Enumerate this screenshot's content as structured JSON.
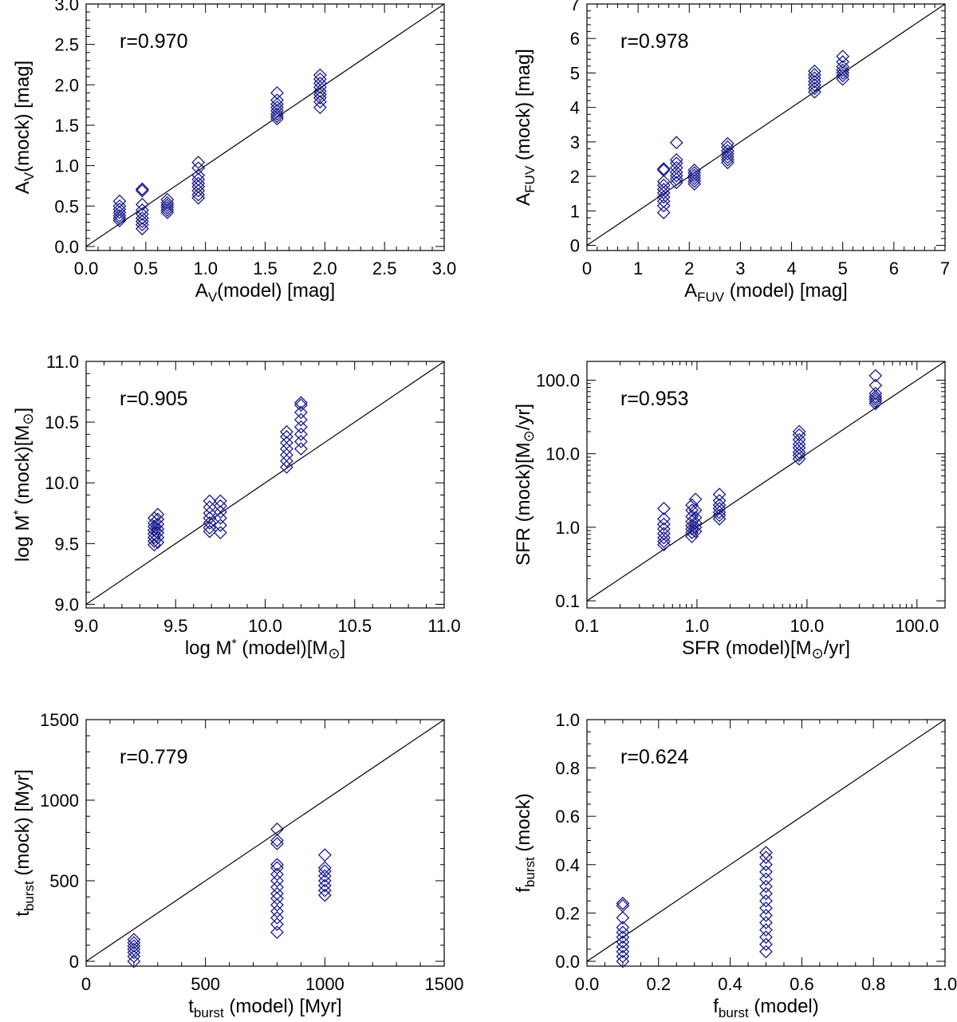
{
  "chart_data": [
    {
      "type": "scatter",
      "title": "",
      "annotation": "r=0.970",
      "xlabel": {
        "base": "A",
        "sub": "V",
        "rest": "(model) [mag]"
      },
      "ylabel": {
        "base": "A",
        "sub": "V",
        "rest": "(mock) [mag]"
      },
      "xlim": [
        0.0,
        3.0
      ],
      "ylim": [
        -0.05,
        3.0
      ],
      "scale": "linear",
      "xticks": [
        0.0,
        0.5,
        1.0,
        1.5,
        2.0,
        2.5,
        3.0
      ],
      "xtick_labels": [
        "0.0",
        "0.5",
        "1.0",
        "1.5",
        "2.0",
        "2.5",
        "3.0"
      ],
      "yticks": [
        0.0,
        0.5,
        1.0,
        1.5,
        2.0,
        2.5,
        3.0
      ],
      "ytick_labels": [
        "0.0",
        "0.5",
        "1.0",
        "1.5",
        "2.0",
        "2.5",
        "3.0"
      ],
      "minor_step": 0.1,
      "identity_line": true,
      "groups": [
        {
          "x": 0.28,
          "y": [
            0.32,
            0.35,
            0.38,
            0.42,
            0.46,
            0.5,
            0.56
          ]
        },
        {
          "x": 0.47,
          "y": [
            0.22,
            0.27,
            0.31,
            0.35,
            0.4,
            0.45,
            0.52,
            0.69,
            0.71
          ]
        },
        {
          "x": 0.68,
          "y": [
            0.42,
            0.45,
            0.48,
            0.51,
            0.54,
            0.58
          ]
        },
        {
          "x": 0.94,
          "y": [
            0.6,
            0.64,
            0.69,
            0.74,
            0.78,
            0.83,
            0.88,
            0.97,
            1.04
          ]
        },
        {
          "x": 1.6,
          "y": [
            1.58,
            1.61,
            1.64,
            1.68,
            1.72,
            1.76,
            1.81,
            1.9
          ]
        },
        {
          "x": 1.96,
          "y": [
            1.72,
            1.79,
            1.84,
            1.88,
            1.92,
            1.97,
            2.02,
            2.07,
            2.12
          ]
        }
      ]
    },
    {
      "type": "scatter",
      "title": "",
      "annotation": "r=0.978",
      "xlabel": {
        "base": "A",
        "sub": "FUV",
        "rest": " (model) [mag]"
      },
      "ylabel": {
        "base": "A",
        "sub": "FUV",
        "rest": " (mock) [mag]"
      },
      "xlim": [
        0,
        7
      ],
      "ylim": [
        -0.15,
        7
      ],
      "scale": "linear",
      "xticks": [
        0,
        1,
        2,
        3,
        4,
        5,
        6,
        7
      ],
      "xtick_labels": [
        "0",
        "1",
        "2",
        "3",
        "4",
        "5",
        "6",
        "7"
      ],
      "yticks": [
        0,
        1,
        2,
        3,
        4,
        5,
        6,
        7
      ],
      "ytick_labels": [
        "0",
        "1",
        "2",
        "3",
        "4",
        "5",
        "6",
        "7"
      ],
      "minor_step": 0.2,
      "identity_line": true,
      "groups": [
        {
          "x": 1.5,
          "y": [
            0.95,
            1.15,
            1.28,
            1.4,
            1.52,
            1.62,
            1.74,
            1.85,
            2.18,
            2.22
          ]
        },
        {
          "x": 1.75,
          "y": [
            1.82,
            1.92,
            2.02,
            2.12,
            2.25,
            2.38,
            2.48,
            2.98
          ]
        },
        {
          "x": 2.1,
          "y": [
            1.78,
            1.86,
            1.94,
            2.02,
            2.1,
            2.18
          ]
        },
        {
          "x": 2.75,
          "y": [
            2.4,
            2.48,
            2.56,
            2.65,
            2.74,
            2.85,
            2.95
          ]
        },
        {
          "x": 4.45,
          "y": [
            4.45,
            4.55,
            4.65,
            4.75,
            4.85,
            4.95,
            5.05
          ]
        },
        {
          "x": 5.0,
          "y": [
            4.82,
            4.92,
            5.0,
            5.08,
            5.18,
            5.32,
            5.48
          ]
        }
      ]
    },
    {
      "type": "scatter",
      "title": "",
      "annotation": "r=0.905",
      "xlabel": {
        "base": "log M",
        "sub": "",
        "star": "*",
        "rest": " (model)[M",
        "sun": true,
        "after": "]"
      },
      "ylabel": {
        "base": "log M",
        "sub": "",
        "star": "*",
        "rest": " (mock)[M",
        "sun": true,
        "after": "]"
      },
      "xlim": [
        9.0,
        11.0
      ],
      "ylim": [
        8.97,
        11.0
      ],
      "scale": "linear",
      "xticks": [
        9.0,
        9.5,
        10.0,
        10.5,
        11.0
      ],
      "xtick_labels": [
        "9.0",
        "9.5",
        "10.0",
        "10.5",
        "11.0"
      ],
      "yticks": [
        9.0,
        9.5,
        10.0,
        10.5,
        11.0
      ],
      "ytick_labels": [
        "9.0",
        "9.5",
        "10.0",
        "10.5",
        "11.0"
      ],
      "minor_step": 0.1,
      "identity_line": true,
      "groups": [
        {
          "x": 9.38,
          "y": [
            9.49,
            9.52,
            9.55,
            9.58,
            9.61,
            9.64,
            9.67,
            9.71
          ]
        },
        {
          "x": 9.4,
          "y": [
            9.51,
            9.55,
            9.59,
            9.62,
            9.66,
            9.7,
            9.74
          ]
        },
        {
          "x": 9.69,
          "y": [
            9.6,
            9.63,
            9.67,
            9.71,
            9.75,
            9.8,
            9.85
          ]
        },
        {
          "x": 9.75,
          "y": [
            9.59,
            9.65,
            9.71,
            9.76,
            9.81,
            9.85
          ]
        },
        {
          "x": 10.12,
          "y": [
            10.13,
            10.18,
            10.23,
            10.28,
            10.33,
            10.38,
            10.42
          ]
        },
        {
          "x": 10.2,
          "y": [
            10.28,
            10.34,
            10.4,
            10.46,
            10.52,
            10.58,
            10.64,
            10.66
          ]
        }
      ]
    },
    {
      "type": "scatter",
      "title": "",
      "annotation": "r=0.953",
      "xlabel": {
        "base": "SFR",
        "sub": "",
        "rest": " (model)[M",
        "sun": true,
        "after": "/yr]"
      },
      "ylabel": {
        "base": "SFR",
        "sub": "",
        "rest": " (mock)[M",
        "sun": true,
        "after": "/yr]"
      },
      "xlim": [
        0.1,
        180
      ],
      "ylim": [
        0.08,
        180
      ],
      "scale": "log",
      "xticks": [
        0.1,
        1.0,
        10.0,
        100.0
      ],
      "xtick_labels": [
        "0.1",
        "1.0",
        "10.0",
        "100.0"
      ],
      "yticks": [
        0.1,
        1.0,
        10.0,
        100.0
      ],
      "ytick_labels": [
        "0.1",
        "1.0",
        "10.0",
        "100.0"
      ],
      "identity_line": true,
      "groups": [
        {
          "x": 0.5,
          "y": [
            0.58,
            0.64,
            0.72,
            0.82,
            0.95,
            1.1,
            1.3,
            1.8
          ]
        },
        {
          "x": 0.9,
          "y": [
            0.75,
            0.85,
            0.95,
            1.05,
            1.2,
            1.4,
            1.7,
            2.0
          ]
        },
        {
          "x": 0.97,
          "y": [
            0.88,
            1.0,
            1.15,
            1.35,
            1.7,
            2.4
          ]
        },
        {
          "x": 1.6,
          "y": [
            1.3,
            1.45,
            1.6,
            1.8,
            2.0,
            2.3,
            2.8
          ]
        },
        {
          "x": 8.5,
          "y": [
            8.5,
            9.5,
            10.5,
            12.0,
            13.5,
            15.5,
            18.0,
            20.0
          ]
        },
        {
          "x": 42.0,
          "y": [
            48.0,
            52.0,
            56.0,
            60.0,
            66.0,
            85.0,
            115.0
          ]
        }
      ]
    },
    {
      "type": "scatter",
      "title": "",
      "annotation": "r=0.779",
      "xlabel": {
        "base": "t",
        "sub": "burst",
        "rest": " (model) [Myr]"
      },
      "ylabel": {
        "base": "t",
        "sub": "burst",
        "rest": " (mock) [Myr]"
      },
      "xlim": [
        0,
        1500
      ],
      "ylim": [
        -30,
        1500
      ],
      "scale": "linear",
      "xticks": [
        0,
        500,
        1000,
        1500
      ],
      "xtick_labels": [
        "0",
        "500",
        "1000",
        "1500"
      ],
      "yticks": [
        0,
        500,
        1000,
        1500
      ],
      "ytick_labels": [
        "0",
        "500",
        "1000",
        "1500"
      ],
      "minor_step": 100,
      "identity_line": true,
      "groups": [
        {
          "x": 200,
          "y": [
            0,
            30,
            55,
            75,
            95,
            115,
            135
          ]
        },
        {
          "x": 800,
          "y": [
            180,
            230,
            270,
            310,
            350,
            390,
            420,
            460,
            500,
            540,
            580,
            600,
            730,
            750,
            820
          ]
        },
        {
          "x": 1000,
          "y": [
            410,
            440,
            470,
            500,
            530,
            560,
            580,
            660
          ]
        }
      ]
    },
    {
      "type": "scatter",
      "title": "",
      "annotation": "r=0.624",
      "xlabel": {
        "base": "f",
        "sub": "burst",
        "rest": " (model)"
      },
      "ylabel": {
        "base": "f",
        "sub": "burst",
        "rest": " (mock)"
      },
      "xlim": [
        0.0,
        1.0
      ],
      "ylim": [
        -0.02,
        1.0
      ],
      "scale": "linear",
      "xticks": [
        0.0,
        0.2,
        0.4,
        0.6,
        0.8,
        1.0
      ],
      "xtick_labels": [
        "0.0",
        "0.2",
        "0.4",
        "0.6",
        "0.8",
        "1.0"
      ],
      "yticks": [
        0.0,
        0.2,
        0.4,
        0.6,
        0.8,
        1.0
      ],
      "ytick_labels": [
        "0.0",
        "0.2",
        "0.4",
        "0.6",
        "0.8",
        "1.0"
      ],
      "minor_step": 0.05,
      "identity_line": true,
      "groups": [
        {
          "x": 0.1,
          "y": [
            0.0,
            0.02,
            0.04,
            0.06,
            0.08,
            0.1,
            0.12,
            0.14,
            0.18,
            0.23,
            0.24
          ]
        },
        {
          "x": 0.5,
          "y": [
            0.04,
            0.07,
            0.1,
            0.13,
            0.16,
            0.19,
            0.22,
            0.25,
            0.28,
            0.31,
            0.34,
            0.37,
            0.4,
            0.43,
            0.45
          ]
        }
      ]
    }
  ]
}
